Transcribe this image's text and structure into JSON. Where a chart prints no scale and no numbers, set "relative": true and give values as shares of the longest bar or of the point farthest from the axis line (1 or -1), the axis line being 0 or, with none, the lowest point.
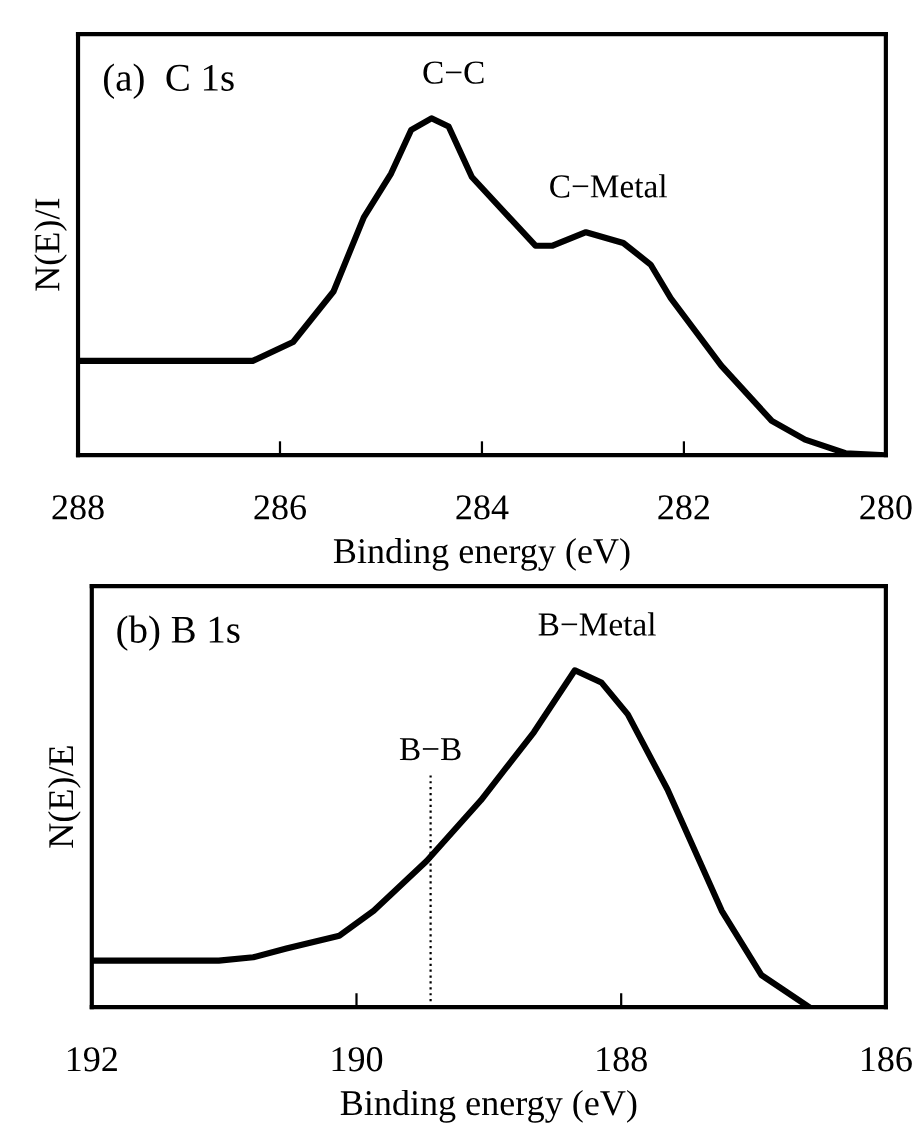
{
  "chart_data": [
    {
      "type": "line",
      "title": "(a)  C 1s",
      "xlabel": "Binding energy (eV)",
      "ylabel": "N(E)/I",
      "relative": true,
      "tick_labels": "x",
      "grid": false,
      "legend": false,
      "marker": "none",
      "line_style": "solid",
      "xlim": [
        288,
        280
      ],
      "xticks": [
        288,
        286,
        284,
        282,
        280
      ],
      "series": [
        {
          "color": "#000000",
          "x": [
            288,
            286.27,
            285.87,
            285.47,
            285.17,
            284.9,
            284.7,
            284.5,
            284.33,
            284.1,
            283.73,
            283.47,
            283.3,
            282.97,
            282.6,
            282.33,
            282.13,
            281.63,
            281.13,
            280.8,
            280.4,
            280
          ],
          "values": [
            0.28,
            0.28,
            0.336,
            0.486,
            0.706,
            0.836,
            0.966,
            1.0,
            0.976,
            0.826,
            0.706,
            0.622,
            0.622,
            0.662,
            0.63,
            0.566,
            0.466,
            0.266,
            0.102,
            0.046,
            0.006,
            0
          ]
        }
      ],
      "annotations": [
        {
          "text": "C−C",
          "x": 284.5,
          "y": 1.0
        },
        {
          "text": "C−Metal",
          "x": 282.97,
          "y": 0.662
        }
      ]
    },
    {
      "type": "line",
      "title": "(b) B 1s",
      "xlabel": "Binding energy (eV)",
      "ylabel": "N(E)/E",
      "relative": true,
      "tick_labels": "x",
      "grid": false,
      "legend": false,
      "marker": "none",
      "line_style": "solid",
      "xlim": [
        192,
        186
      ],
      "xticks": [
        192,
        190,
        188,
        186
      ],
      "series": [
        {
          "color": "#000000",
          "x": [
            192,
            191.04,
            190.78,
            190.53,
            190.13,
            189.87,
            189.47,
            189.06,
            188.66,
            188.35,
            188.15,
            187.95,
            187.65,
            187.24,
            186.94,
            186.58
          ],
          "values": [
            0.138,
            0.138,
            0.148,
            0.174,
            0.212,
            0.286,
            0.434,
            0.614,
            0.816,
            1.0,
            0.964,
            0.869,
            0.646,
            0.286,
            0.095,
            0
          ]
        }
      ],
      "ref_lines": [
        {
          "axis": "x",
          "value": 189.44,
          "label": "B−B",
          "line_style": "dotted",
          "color": "#000000"
        }
      ],
      "annotations": [
        {
          "text": "B−Metal",
          "x": 188.35,
          "y": 1.0
        }
      ]
    }
  ]
}
